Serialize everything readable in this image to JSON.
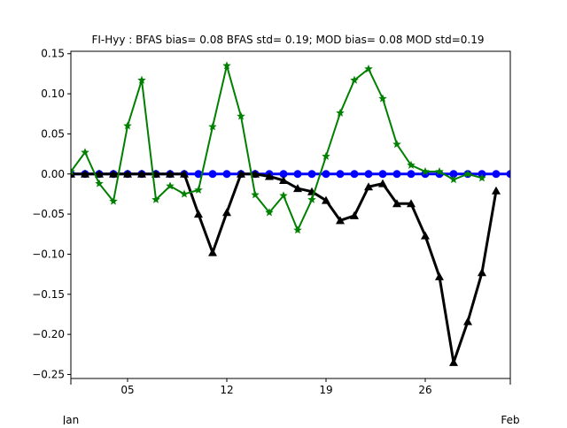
{
  "chart_data": {
    "type": "line",
    "title": "FI-Hyy   : BFAS bias= 0.08 BFAS std= 0.19; MOD bias= 0.08 MOD std=0.19",
    "xlabel": "",
    "ylabel": "",
    "x_tick_labels": [
      "05",
      "12",
      "19",
      "26"
    ],
    "x_tick_days": [
      5,
      12,
      19,
      26
    ],
    "x_minor_ticks": [
      1,
      32
    ],
    "x_sub_labels": [
      "Jan",
      "Feb"
    ],
    "xlim": [
      1,
      32
    ],
    "ylim": [
      -0.255,
      0.153
    ],
    "y_ticks": [
      -0.25,
      -0.2,
      -0.15,
      -0.1,
      -0.05,
      0.0,
      0.05,
      0.1,
      0.15
    ],
    "y_tick_labels": [
      "−0.25",
      "−0.20",
      "−0.15",
      "−0.10",
      "−0.05",
      "0.00",
      "0.05",
      "0.10",
      "0.15"
    ],
    "grid": false,
    "series": [
      {
        "color": "#0000ff",
        "marker": "circle",
        "x": [
          1,
          2,
          3,
          4,
          5,
          6,
          7,
          8,
          9,
          10,
          11,
          12,
          13,
          14,
          15,
          16,
          17,
          18,
          19,
          20,
          21,
          22,
          23,
          24,
          25,
          26,
          27,
          28,
          29,
          30,
          31,
          32
        ],
        "y": [
          0,
          0,
          0,
          0,
          0,
          0,
          0,
          0,
          0,
          0,
          0,
          0,
          0,
          0,
          0,
          0,
          0,
          0,
          0,
          0,
          0,
          0,
          0,
          0,
          0,
          0,
          0,
          0,
          0,
          0,
          0,
          0
        ]
      },
      {
        "color": "#000000",
        "marker": "triangle",
        "x": [
          1,
          2,
          3,
          4,
          5,
          6,
          7,
          8,
          9,
          10,
          11,
          12,
          13,
          14,
          15,
          16,
          17,
          18,
          19,
          20,
          21,
          22,
          23,
          24,
          25,
          26,
          27,
          28,
          29,
          30,
          31
        ],
        "y": [
          0,
          0,
          0,
          0,
          0,
          0,
          0,
          0,
          0,
          -0.05,
          -0.098,
          -0.048,
          0,
          0,
          -0.003,
          -0.008,
          -0.018,
          -0.022,
          -0.033,
          -0.058,
          -0.052,
          -0.016,
          -0.012,
          -0.037,
          -0.037,
          -0.077,
          -0.128,
          -0.235,
          -0.184,
          -0.123,
          -0.021
        ]
      },
      {
        "color": "#008000",
        "marker": "star",
        "x": [
          1,
          2,
          3,
          4,
          5,
          6,
          7,
          8,
          9,
          10,
          11,
          12,
          13,
          14,
          15,
          16,
          17,
          18,
          19,
          20,
          21,
          22,
          23,
          24,
          25,
          26,
          27,
          28,
          29,
          30,
          31
        ],
        "y": [
          0.003,
          0.027,
          -0.012,
          -0.034,
          0.06,
          0.117,
          -0.032,
          -0.015,
          -0.025,
          -0.02,
          0.059,
          0.135,
          0.072,
          -0.026,
          -0.048,
          -0.027,
          -0.07,
          -0.032,
          0.022,
          0.076,
          0.117,
          0.131,
          0.094,
          0.037,
          0.011,
          0.003,
          0.003,
          -0.007,
          0,
          -0.005,
          null
        ]
      }
    ]
  }
}
